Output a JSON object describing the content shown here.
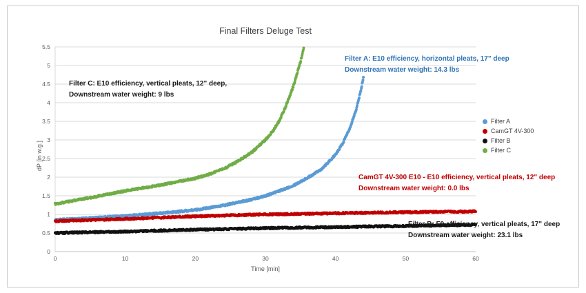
{
  "page": {
    "background": "#ffffff"
  },
  "chart_data": {
    "type": "scatter",
    "title": "Final Filters Deluge Test",
    "xlabel": "Time [min]",
    "ylabel": "dP [in w.g.]",
    "xlim": [
      0,
      60
    ],
    "ylim": [
      0,
      5.5
    ],
    "xticks": [
      0,
      10,
      20,
      30,
      40,
      50,
      60
    ],
    "yticks": [
      0,
      0.5,
      1,
      1.5,
      2,
      2.5,
      3,
      3.5,
      4,
      4.5,
      5,
      5.5
    ],
    "grid": "horizontal",
    "legend_position": "right",
    "series": [
      {
        "name": "Filter A",
        "color": "#5B9BD5",
        "points": [
          [
            0,
            0.85
          ],
          [
            5,
            0.9
          ],
          [
            10,
            0.96
          ],
          [
            15,
            1.03
          ],
          [
            20,
            1.12
          ],
          [
            24,
            1.24
          ],
          [
            28,
            1.4
          ],
          [
            30,
            1.5
          ],
          [
            32,
            1.63
          ],
          [
            34,
            1.78
          ],
          [
            36,
            1.98
          ],
          [
            38,
            2.22
          ],
          [
            40,
            2.6
          ],
          [
            41,
            2.9
          ],
          [
            42,
            3.3
          ],
          [
            43,
            3.85
          ],
          [
            43.5,
            4.25
          ],
          [
            44,
            4.68
          ]
        ]
      },
      {
        "name": "CamGT 4V-300",
        "color": "#C00000",
        "points": [
          [
            0,
            0.82
          ],
          [
            10,
            0.88
          ],
          [
            20,
            0.95
          ],
          [
            30,
            1.0
          ],
          [
            40,
            1.03
          ],
          [
            50,
            1.06
          ],
          [
            60,
            1.08
          ]
        ]
      },
      {
        "name": "Filter B",
        "color": "#111111",
        "points": [
          [
            0,
            0.5
          ],
          [
            10,
            0.54
          ],
          [
            20,
            0.59
          ],
          [
            30,
            0.63
          ],
          [
            40,
            0.66
          ],
          [
            50,
            0.69
          ],
          [
            60,
            0.72
          ]
        ]
      },
      {
        "name": "Filter C",
        "color": "#70AD47",
        "points": [
          [
            0,
            1.28
          ],
          [
            5,
            1.45
          ],
          [
            10,
            1.63
          ],
          [
            15,
            1.79
          ],
          [
            20,
            1.97
          ],
          [
            22,
            2.08
          ],
          [
            24,
            2.22
          ],
          [
            26,
            2.42
          ],
          [
            28,
            2.66
          ],
          [
            30,
            3.0
          ],
          [
            31,
            3.22
          ],
          [
            32,
            3.52
          ],
          [
            33,
            3.95
          ],
          [
            34,
            4.45
          ],
          [
            35,
            5.1
          ],
          [
            35.5,
            5.5
          ]
        ]
      }
    ]
  },
  "annotations": [
    {
      "id": "filter-a-note",
      "color": "#2E74B5",
      "lines": [
        "Filter A: E10 efficiency, horizontal pleats, 17\" deep",
        "Downstream water weight: 14.3 lbs"
      ]
    },
    {
      "id": "filter-c-note",
      "color": "#1a1a1a",
      "lines": [
        "Filter C: E10 efficiency, vertical pleats, 12\" deep,",
        "Downstream water weight: 9 lbs"
      ]
    },
    {
      "id": "camgt-note",
      "color": "#C00000",
      "lines": [
        "CamGT 4V-300 E10 - E10 efficiency, vertical pleats, 12\" deep",
        "Downstream water weight: 0.0 lbs"
      ]
    },
    {
      "id": "filter-b-note",
      "color": "#1a1a1a",
      "lines": [
        "Filter B: F9 efficiency, vertical pleats, 17\" deep",
        "Downstream water weight: 23.1 lbs"
      ]
    }
  ]
}
